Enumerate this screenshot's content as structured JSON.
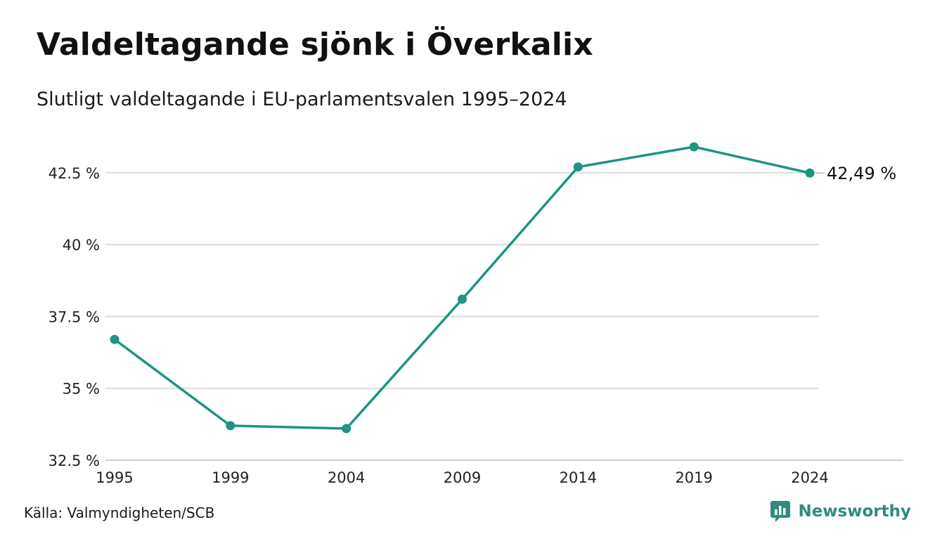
{
  "header": {
    "title": "Valdeltagande sjönk i Överkalix",
    "subtitle": "Slutligt valdeltagande i EU-parlamentsvalen 1995–2024"
  },
  "footer": {
    "source": "Källa: Valmyndigheten/SCB",
    "brand": "Newsworthy",
    "brand_icon": "newsworthy-logo-icon"
  },
  "colors": {
    "line": "#1f9384",
    "grid": "#dddddd",
    "brand": "#2e8c7f"
  },
  "chart_data": {
    "type": "line",
    "title": "Valdeltagande sjönk i Överkalix",
    "subtitle": "Slutligt valdeltagande i EU-parlamentsvalen 1995–2024",
    "xlabel": "",
    "ylabel": "",
    "x": [
      "1995",
      "1999",
      "2004",
      "2009",
      "2014",
      "2019",
      "2024"
    ],
    "series": [
      {
        "values": [
          36.7,
          33.7,
          33.6,
          38.1,
          42.7,
          43.4,
          42.49
        ]
      }
    ],
    "yticks": [
      32.5,
      35,
      37.5,
      40,
      42.5
    ],
    "ytick_labels": [
      "32.5 %",
      "35 %",
      "37.5 %",
      "40 %",
      "42.5 %"
    ],
    "ylim": [
      32.5,
      43.4
    ],
    "grid": true,
    "end_label": "42,49 %"
  }
}
